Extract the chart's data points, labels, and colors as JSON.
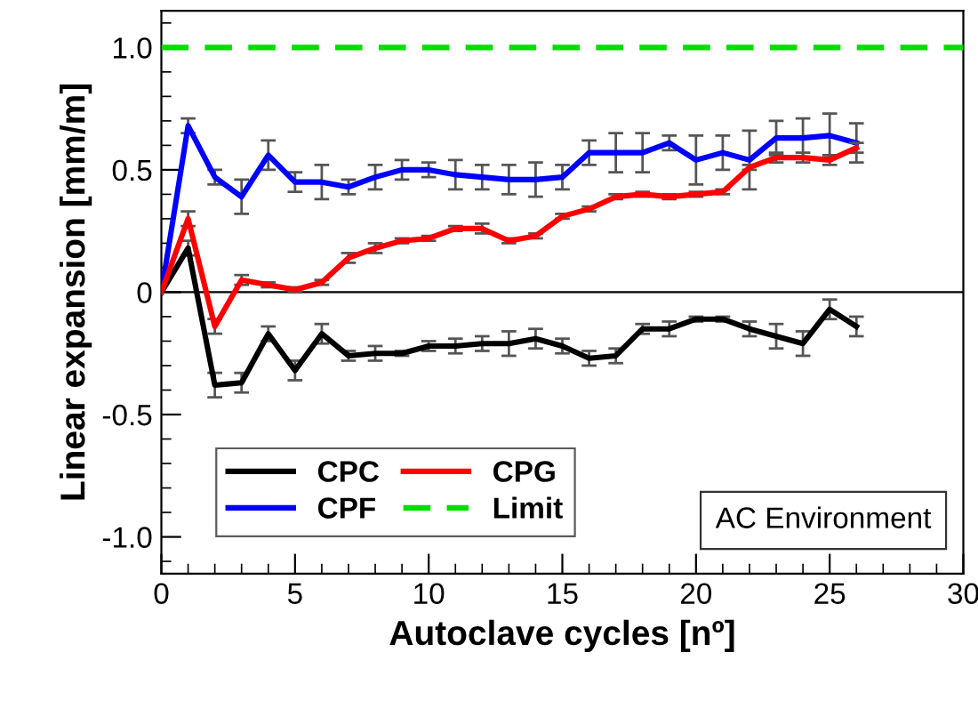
{
  "chart_data": {
    "type": "line",
    "xlabel": "Autoclave cycles [nº]",
    "ylabel": "Linear expansion [mm/m]",
    "x": [
      0,
      1,
      2,
      3,
      4,
      5,
      6,
      7,
      8,
      9,
      10,
      11,
      12,
      13,
      14,
      15,
      16,
      17,
      18,
      19,
      20,
      21,
      22,
      23,
      24,
      25,
      26
    ],
    "series": [
      {
        "name": "CPC",
        "color": "#000000",
        "values": [
          0,
          0.18,
          -0.38,
          -0.37,
          -0.17,
          -0.32,
          -0.17,
          -0.26,
          -0.25,
          -0.25,
          -0.22,
          -0.22,
          -0.21,
          -0.21,
          -0.19,
          -0.22,
          -0.27,
          -0.26,
          -0.15,
          -0.15,
          -0.11,
          -0.11,
          -0.15,
          -0.18,
          -0.21,
          -0.07,
          -0.14
        ],
        "errors": [
          null,
          0.03,
          0.05,
          0.04,
          0.03,
          0.04,
          0.04,
          0.02,
          0.03,
          0.01,
          0.02,
          0.03,
          0.03,
          0.05,
          0.04,
          0.03,
          0.03,
          0.03,
          0.02,
          0.03,
          0.01,
          0.01,
          0.03,
          0.05,
          0.05,
          0.04,
          0.04
        ]
      },
      {
        "name": "CPF",
        "color": "#0000ff",
        "values": [
          0,
          0.68,
          0.47,
          0.39,
          0.56,
          0.45,
          0.45,
          0.43,
          0.47,
          0.5,
          0.5,
          0.48,
          0.47,
          0.46,
          0.46,
          0.47,
          0.57,
          0.57,
          0.57,
          0.61,
          0.54,
          0.57,
          0.54,
          0.63,
          0.63,
          0.64,
          0.61
        ],
        "errors": [
          null,
          0.03,
          0.03,
          0.07,
          0.06,
          0.04,
          0.07,
          0.03,
          0.05,
          0.04,
          0.03,
          0.06,
          0.05,
          0.06,
          0.07,
          0.05,
          0.05,
          0.08,
          0.08,
          0.03,
          0.1,
          0.07,
          0.12,
          0.07,
          0.08,
          0.09,
          0.08
        ]
      },
      {
        "name": "CPG",
        "color": "#ff0000",
        "values": [
          0,
          0.3,
          -0.14,
          0.05,
          0.03,
          0.01,
          0.04,
          0.14,
          0.18,
          0.21,
          0.22,
          0.26,
          0.26,
          0.21,
          0.23,
          0.31,
          0.34,
          0.39,
          0.4,
          0.39,
          0.4,
          0.41,
          0.51,
          0.55,
          0.55,
          0.54,
          0.59
        ],
        "errors": [
          null,
          0.03,
          0.03,
          0.02,
          0.01,
          0.01,
          0.01,
          0.02,
          0.02,
          0.01,
          0.01,
          0.01,
          0.02,
          0.01,
          0.01,
          0.01,
          0.01,
          0.01,
          0.01,
          0.01,
          0.01,
          0.01,
          0.01,
          0.02,
          0.02,
          0.02,
          0.02
        ]
      },
      {
        "name": "Limit",
        "color": "#00dd00",
        "x": [
          0,
          30
        ],
        "values": [
          1,
          1
        ],
        "line_style": "dashed"
      }
    ],
    "ref_lines": [
      {
        "axis": "y",
        "value": 0,
        "color": "#000000"
      }
    ],
    "annotations": [
      "AC Environment"
    ],
    "xlim": [
      0,
      30
    ],
    "ylim": [
      -1.15,
      1.15
    ],
    "xticks": [
      0,
      {
        "value": 1,
        "label": null
      },
      {
        "value": 2,
        "label": null
      },
      {
        "value": 3,
        "label": null
      },
      {
        "value": 4,
        "label": null
      },
      5,
      {
        "value": 6,
        "label": null
      },
      {
        "value": 7,
        "label": null
      },
      {
        "value": 8,
        "label": null
      },
      {
        "value": 9,
        "label": null
      },
      10,
      {
        "value": 11,
        "label": null
      },
      {
        "value": 12,
        "label": null
      },
      {
        "value": 13,
        "label": null
      },
      {
        "value": 14,
        "label": null
      },
      15,
      {
        "value": 16,
        "label": null
      },
      {
        "value": 17,
        "label": null
      },
      {
        "value": 18,
        "label": null
      },
      {
        "value": 19,
        "label": null
      },
      20,
      {
        "value": 21,
        "label": null
      },
      {
        "value": 22,
        "label": null
      },
      {
        "value": 23,
        "label": null
      },
      {
        "value": 24,
        "label": null
      },
      25,
      {
        "value": 26,
        "label": null
      },
      {
        "value": 27,
        "label": null
      },
      {
        "value": 28,
        "label": null
      },
      {
        "value": 29,
        "label": null
      },
      30
    ],
    "yticks": [
      {
        "value": -1.1,
        "label": null
      },
      {
        "value": -1.0,
        "label": "-1.0"
      },
      {
        "value": -0.9,
        "label": null
      },
      {
        "value": -0.8,
        "label": null
      },
      {
        "value": -0.7,
        "label": null
      },
      {
        "value": -0.6,
        "label": null
      },
      {
        "value": -0.5,
        "label": "-0.5"
      },
      {
        "value": -0.4,
        "label": null
      },
      {
        "value": -0.3,
        "label": null
      },
      {
        "value": -0.2,
        "label": null
      },
      {
        "value": -0.1,
        "label": null
      },
      0,
      {
        "value": 0.1,
        "label": null
      },
      {
        "value": 0.2,
        "label": null
      },
      {
        "value": 0.3,
        "label": null
      },
      {
        "value": 0.4,
        "label": null
      },
      {
        "value": 0.5,
        "label": "0.5"
      },
      {
        "value": 0.6,
        "label": null
      },
      {
        "value": 0.7,
        "label": null
      },
      {
        "value": 0.8,
        "label": null
      },
      {
        "value": 0.9,
        "label": null
      },
      {
        "value": 1.0,
        "label": "1.0"
      },
      {
        "value": 1.1,
        "label": null
      }
    ],
    "legend": "bottom left",
    "grid": false,
    "marker": "none",
    "line_style": "solid"
  }
}
